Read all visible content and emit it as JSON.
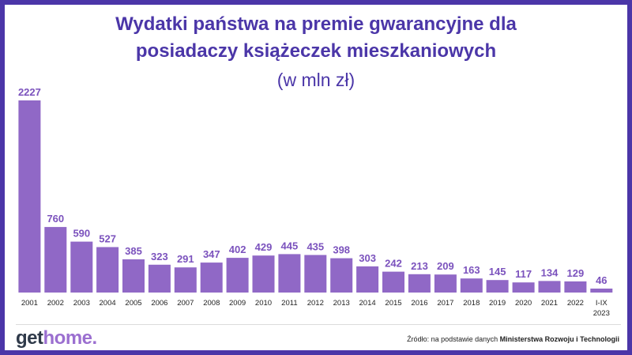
{
  "brand": {
    "logo_part1": "get",
    "logo_part2": "home.",
    "bg_color": "#4b36a8",
    "accent_color": "#9b6fd0"
  },
  "source": {
    "prefix": "Źródło: na podstawie danych",
    "org": "Ministerstwa Rozwoju i Technologii"
  },
  "chart_data": {
    "type": "bar",
    "title_line1": "Wydatki państwa na premie gwarancyjne dla",
    "title_line2": "posiadaczy książeczek mieszkaniowych",
    "subtitle": "(w mln zł)",
    "categories": [
      "2001",
      "2002",
      "2003",
      "2004",
      "2005",
      "2006",
      "2007",
      "2008",
      "2009",
      "2010",
      "2011",
      "2012",
      "2013",
      "2014",
      "2015",
      "2016",
      "2017",
      "2018",
      "2019",
      "2020",
      "2021",
      "2022",
      "I-IX\n2023"
    ],
    "values": [
      2227,
      760,
      590,
      527,
      385,
      323,
      291,
      347,
      402,
      429,
      445,
      435,
      398,
      303,
      242,
      213,
      209,
      163,
      145,
      117,
      134,
      129,
      46
    ],
    "bar_color": "#9068c6",
    "label_color": "#7b52bd",
    "ylim": [
      0,
      2227
    ],
    "grid": false,
    "legend": "none"
  }
}
